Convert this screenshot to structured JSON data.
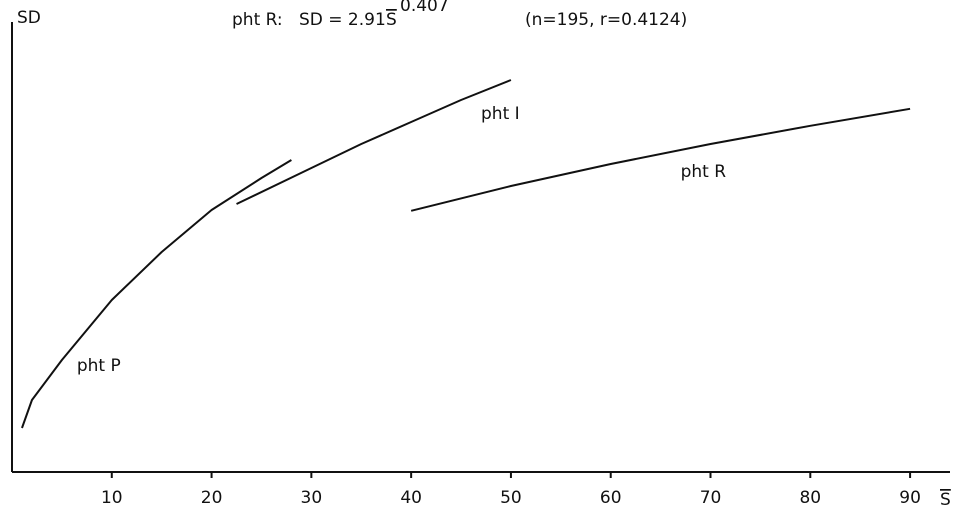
{
  "chart_data": {
    "type": "line",
    "title": {
      "label": "pht R:",
      "equation": "SD = 2.91",
      "base": "S",
      "exponent": "0.407",
      "stats": "(n=195, r=0.4124)"
    },
    "ylabel": "SD",
    "xlabel": "S",
    "xlim": [
      0,
      94
    ],
    "xticks": [
      10,
      20,
      30,
      40,
      50,
      60,
      70,
      80,
      90
    ],
    "ylim": [
      0,
      22.5
    ],
    "series": [
      {
        "name": "pht P",
        "color": "#111111",
        "x": [
          1,
          2,
          5,
          10,
          15,
          20,
          25,
          28
        ],
        "values": [
          2.2,
          3.6,
          5.6,
          8.6,
          11.0,
          13.1,
          14.7,
          15.6
        ]
      },
      {
        "name": "pht I",
        "color": "#111111",
        "x": [
          22.5,
          30,
          35,
          40,
          45,
          50
        ],
        "values": [
          13.4,
          15.2,
          16.4,
          17.5,
          18.6,
          19.6
        ]
      },
      {
        "name": "pht R",
        "color": "#111111",
        "x": [
          40,
          50,
          60,
          70,
          80,
          90
        ],
        "values": [
          13.06,
          14.3,
          15.4,
          16.4,
          17.31,
          18.16
        ]
      }
    ]
  }
}
